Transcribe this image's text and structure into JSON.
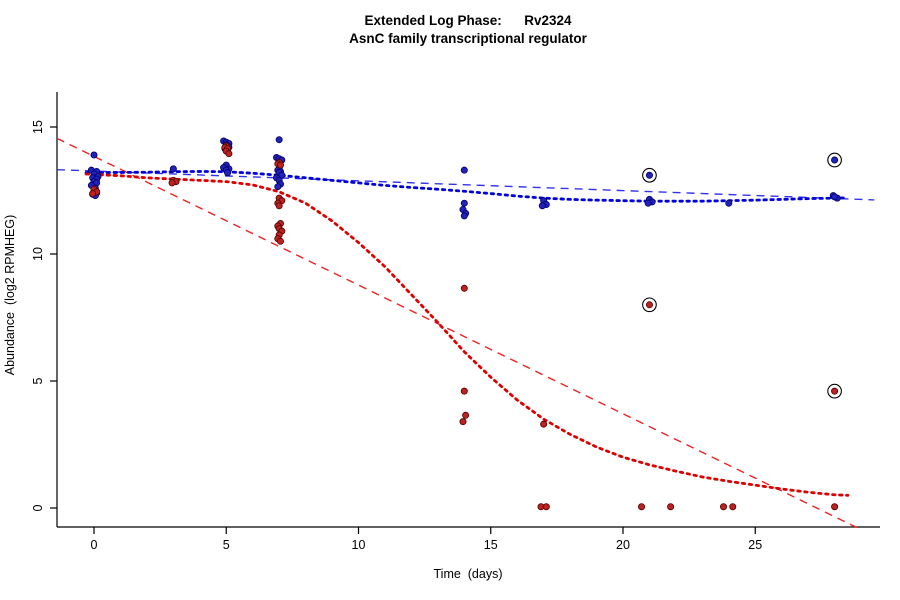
{
  "chart_data": {
    "type": "scatter",
    "title": "Extended Log Phase:      Rv2324",
    "subtitle": "AsnC family transcriptional regulator",
    "xlabel": "Time  (days)",
    "ylabel": "Abundance  (log2 RPMHEG)",
    "xlim": [
      -1.5,
      29.7
    ],
    "ylim": [
      -0.8,
      16.4
    ],
    "xticks": [
      0,
      5,
      10,
      15,
      20,
      25
    ],
    "yticks": [
      0,
      5,
      10,
      15
    ],
    "grid": false,
    "legend": "none",
    "series": [
      {
        "name": "blue",
        "color": "#2222bb",
        "stroke": "#000066",
        "points": [
          [
            0,
            13.9
          ],
          [
            -0.1,
            13.3
          ],
          [
            0.1,
            13.25
          ],
          [
            0,
            13.15
          ],
          [
            0.15,
            13.05
          ],
          [
            -0.05,
            13.0
          ],
          [
            0.1,
            12.95
          ],
          [
            0,
            12.85
          ],
          [
            0.1,
            12.8
          ],
          [
            -0.1,
            12.7
          ],
          [
            0.05,
            12.6
          ],
          [
            0,
            12.45
          ],
          [
            0.1,
            12.4
          ],
          [
            -0.05,
            12.35
          ],
          [
            0.05,
            12.3
          ],
          [
            3,
            13.35
          ],
          [
            4.9,
            14.45
          ],
          [
            5,
            14.4
          ],
          [
            5.1,
            14.35
          ],
          [
            5,
            14.3
          ],
          [
            5.1,
            14.2
          ],
          [
            4.95,
            14.15
          ],
          [
            5.05,
            14.1
          ],
          [
            5,
            13.5
          ],
          [
            4.9,
            13.4
          ],
          [
            5.1,
            13.35
          ],
          [
            5,
            13.3
          ],
          [
            5.05,
            13.2
          ],
          [
            7,
            14.5
          ],
          [
            6.9,
            13.8
          ],
          [
            7,
            13.75
          ],
          [
            7.1,
            13.7
          ],
          [
            7,
            13.35
          ],
          [
            6.95,
            13.3
          ],
          [
            7.05,
            13.25
          ],
          [
            7,
            13.2
          ],
          [
            7.1,
            13.1
          ],
          [
            6.9,
            13.0
          ],
          [
            7,
            12.9
          ],
          [
            7.05,
            12.75
          ],
          [
            6.95,
            12.65
          ],
          [
            14,
            13.3
          ],
          [
            14,
            12.0
          ],
          [
            13.95,
            11.75
          ],
          [
            14.05,
            11.6
          ],
          [
            14,
            11.5
          ],
          [
            17,
            12.1
          ],
          [
            17.1,
            11.95
          ],
          [
            16.95,
            11.9
          ],
          [
            21,
            12.15
          ],
          [
            21.1,
            12.05
          ],
          [
            20.95,
            12.0
          ],
          [
            24,
            12.0
          ],
          [
            27.95,
            12.3
          ],
          [
            28.1,
            12.2
          ],
          [
            28,
            12.25
          ]
        ]
      },
      {
        "name": "red",
        "color": "#bb2222",
        "stroke": "#550000",
        "points": [
          [
            0,
            12.55
          ],
          [
            0.1,
            12.45
          ],
          [
            -0.05,
            12.38
          ],
          [
            3,
            12.9
          ],
          [
            3.1,
            12.85
          ],
          [
            2.95,
            12.8
          ],
          [
            5,
            14.25
          ],
          [
            4.95,
            14.2
          ],
          [
            5.05,
            14.15
          ],
          [
            5,
            14.05
          ],
          [
            5.1,
            13.95
          ],
          [
            7,
            13.6
          ],
          [
            6.95,
            13.55
          ],
          [
            7.05,
            13.5
          ],
          [
            7,
            12.2
          ],
          [
            7.1,
            12.1
          ],
          [
            6.95,
            12.0
          ],
          [
            7,
            11.9
          ],
          [
            7.05,
            11.2
          ],
          [
            6.95,
            11.1
          ],
          [
            7,
            11.0
          ],
          [
            7.1,
            10.9
          ],
          [
            7,
            10.75
          ],
          [
            6.95,
            10.6
          ],
          [
            7.05,
            10.5
          ],
          [
            14,
            8.65
          ],
          [
            14,
            4.6
          ],
          [
            14.05,
            3.65
          ],
          [
            13.95,
            3.4
          ],
          [
            17,
            3.3
          ],
          [
            16.9,
            0.05
          ],
          [
            17.1,
            0.05
          ],
          [
            20.7,
            0.05
          ],
          [
            21.8,
            0.05
          ],
          [
            23.8,
            0.05
          ],
          [
            24.15,
            0.05
          ],
          [
            28,
            0.05
          ]
        ]
      }
    ],
    "circled_points": [
      {
        "x": 21,
        "y": 13.1,
        "series": "blue"
      },
      {
        "x": 21,
        "y": 8.0,
        "series": "red"
      },
      {
        "x": 28,
        "y": 13.7,
        "series": "blue"
      },
      {
        "x": 28,
        "y": 4.6,
        "series": "red"
      }
    ],
    "fit_lines": [
      {
        "name": "blue-linear-fit",
        "style": "dashed",
        "color": "#3333ee",
        "points": [
          [
            -1.4,
            13.32
          ],
          [
            29.5,
            12.13
          ]
        ]
      },
      {
        "name": "red-linear-fit",
        "style": "dashed",
        "color": "#ee2222",
        "points": [
          [
            -1.4,
            14.55
          ],
          [
            29.0,
            -0.85
          ]
        ]
      }
    ],
    "smooth_curves": [
      {
        "name": "blue-smooth",
        "style": "dotted",
        "color": "#0000dd",
        "points": [
          [
            -0.3,
            13.2
          ],
          [
            1,
            13.21
          ],
          [
            2,
            13.22
          ],
          [
            3,
            13.24
          ],
          [
            4,
            13.25
          ],
          [
            5,
            13.24
          ],
          [
            6,
            13.18
          ],
          [
            7,
            13.1
          ],
          [
            8,
            13.0
          ],
          [
            9,
            12.9
          ],
          [
            10,
            12.8
          ],
          [
            11,
            12.7
          ],
          [
            12,
            12.62
          ],
          [
            13,
            12.55
          ],
          [
            14,
            12.47
          ],
          [
            15,
            12.38
          ],
          [
            16,
            12.28
          ],
          [
            17,
            12.2
          ],
          [
            18,
            12.15
          ],
          [
            19,
            12.12
          ],
          [
            20,
            12.1
          ],
          [
            21,
            12.08
          ],
          [
            22,
            12.08
          ],
          [
            23,
            12.08
          ],
          [
            24,
            12.1
          ],
          [
            25,
            12.12
          ],
          [
            26,
            12.15
          ],
          [
            27,
            12.18
          ],
          [
            28,
            12.2
          ],
          [
            28.5,
            12.21
          ]
        ]
      },
      {
        "name": "red-smooth",
        "style": "dotted",
        "color": "#dd0000",
        "points": [
          [
            -0.3,
            13.15
          ],
          [
            1,
            13.08
          ],
          [
            2,
            13.0
          ],
          [
            3,
            12.95
          ],
          [
            4,
            12.9
          ],
          [
            5,
            12.85
          ],
          [
            6,
            12.72
          ],
          [
            7,
            12.45
          ],
          [
            8,
            12.0
          ],
          [
            9,
            11.3
          ],
          [
            10,
            10.45
          ],
          [
            11,
            9.5
          ],
          [
            12,
            8.4
          ],
          [
            13,
            7.3
          ],
          [
            14,
            6.15
          ],
          [
            15,
            5.15
          ],
          [
            16,
            4.25
          ],
          [
            17,
            3.5
          ],
          [
            18,
            2.9
          ],
          [
            19,
            2.4
          ],
          [
            20,
            2.0
          ],
          [
            21,
            1.7
          ],
          [
            22,
            1.45
          ],
          [
            23,
            1.22
          ],
          [
            24,
            1.05
          ],
          [
            25,
            0.9
          ],
          [
            26,
            0.75
          ],
          [
            27,
            0.62
          ],
          [
            28,
            0.52
          ],
          [
            28.5,
            0.5
          ]
        ]
      }
    ]
  }
}
